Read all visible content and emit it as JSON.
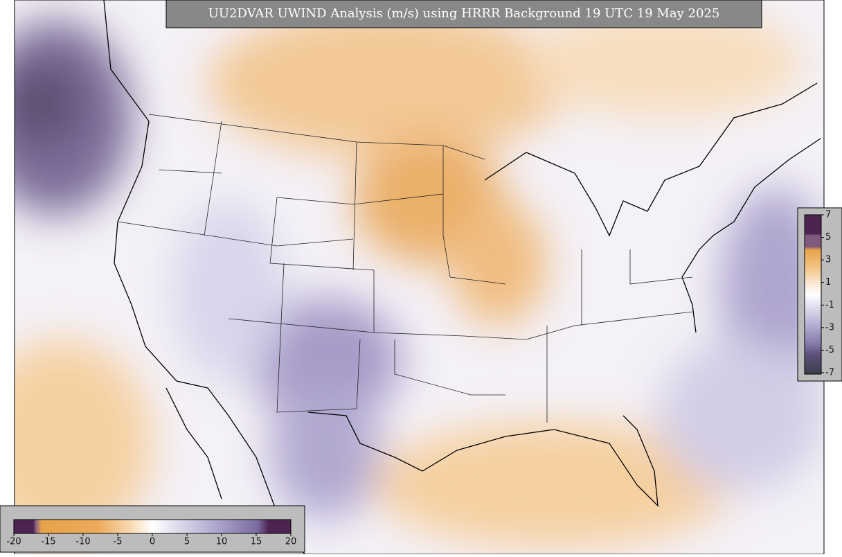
{
  "title": "UU2DVAR UWIND Analysis (m/s) using HRRR Background 19 UTC 19 May 2025",
  "colorbar_right": {
    "ticks": [
      7,
      5,
      3,
      1,
      -1,
      -3,
      -5,
      -7
    ]
  },
  "colorbar_bottom": {
    "ticks": [
      -20,
      -15,
      -10,
      -5,
      0,
      5,
      10,
      15,
      20
    ]
  }
}
